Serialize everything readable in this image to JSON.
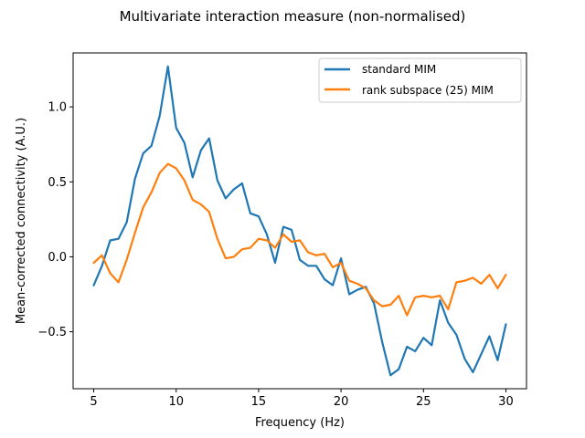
{
  "chart_data": {
    "type": "line",
    "title": "Multivariate interaction measure (non-normalised)",
    "xlabel": "Frequency (Hz)",
    "ylabel": "Mean-corrected connectivity (A.U.)",
    "xlim": [
      3.75,
      31.25
    ],
    "ylim": [
      -0.88,
      1.36
    ],
    "xticks": [
      5,
      10,
      15,
      20,
      25,
      30
    ],
    "yticks": [
      -0.5,
      0.0,
      0.5,
      1.0
    ],
    "ytick_labels": [
      "−0.5",
      "0.0",
      "0.5",
      "1.0"
    ],
    "grid": false,
    "legend_position": "upper right",
    "x": [
      5.0,
      5.5,
      6.0,
      6.5,
      7.0,
      7.5,
      8.0,
      8.5,
      9.0,
      9.5,
      10.0,
      10.5,
      11.0,
      11.5,
      12.0,
      12.5,
      13.0,
      13.5,
      14.0,
      14.5,
      15.0,
      15.5,
      16.0,
      16.5,
      17.0,
      17.5,
      18.0,
      18.5,
      19.0,
      19.5,
      20.0,
      20.5,
      21.0,
      21.5,
      22.0,
      22.5,
      23.0,
      23.5,
      24.0,
      24.5,
      25.0,
      25.5,
      26.0,
      26.5,
      27.0,
      27.5,
      28.0,
      28.5,
      29.0,
      29.5,
      30.0
    ],
    "series": [
      {
        "name": "standard MIM",
        "color": "#1f77b4",
        "values": [
          -0.19,
          -0.06,
          0.11,
          0.12,
          0.23,
          0.52,
          0.69,
          0.74,
          0.94,
          1.27,
          0.86,
          0.76,
          0.53,
          0.71,
          0.79,
          0.51,
          0.39,
          0.45,
          0.49,
          0.29,
          0.27,
          0.15,
          -0.04,
          0.2,
          0.18,
          -0.02,
          -0.06,
          -0.06,
          -0.15,
          -0.19,
          -0.01,
          -0.25,
          -0.22,
          -0.2,
          -0.31,
          -0.57,
          -0.79,
          -0.75,
          -0.6,
          -0.63,
          -0.54,
          -0.59,
          -0.29,
          -0.44,
          -0.52,
          -0.68,
          -0.77,
          -0.65,
          -0.53,
          -0.69,
          -0.45
        ]
      },
      {
        "name": "rank subspace (25) MIM",
        "color": "#ff7f0e",
        "values": [
          -0.04,
          0.01,
          -0.11,
          -0.17,
          -0.02,
          0.16,
          0.33,
          0.43,
          0.56,
          0.62,
          0.59,
          0.51,
          0.38,
          0.35,
          0.3,
          0.12,
          -0.01,
          0.0,
          0.05,
          0.06,
          0.12,
          0.11,
          0.06,
          0.15,
          0.1,
          0.11,
          0.03,
          0.01,
          0.02,
          -0.07,
          -0.04,
          -0.16,
          -0.18,
          -0.21,
          -0.29,
          -0.33,
          -0.32,
          -0.26,
          -0.39,
          -0.27,
          -0.26,
          -0.27,
          -0.26,
          -0.35,
          -0.17,
          -0.16,
          -0.14,
          -0.18,
          -0.12,
          -0.21,
          -0.12
        ]
      }
    ]
  }
}
